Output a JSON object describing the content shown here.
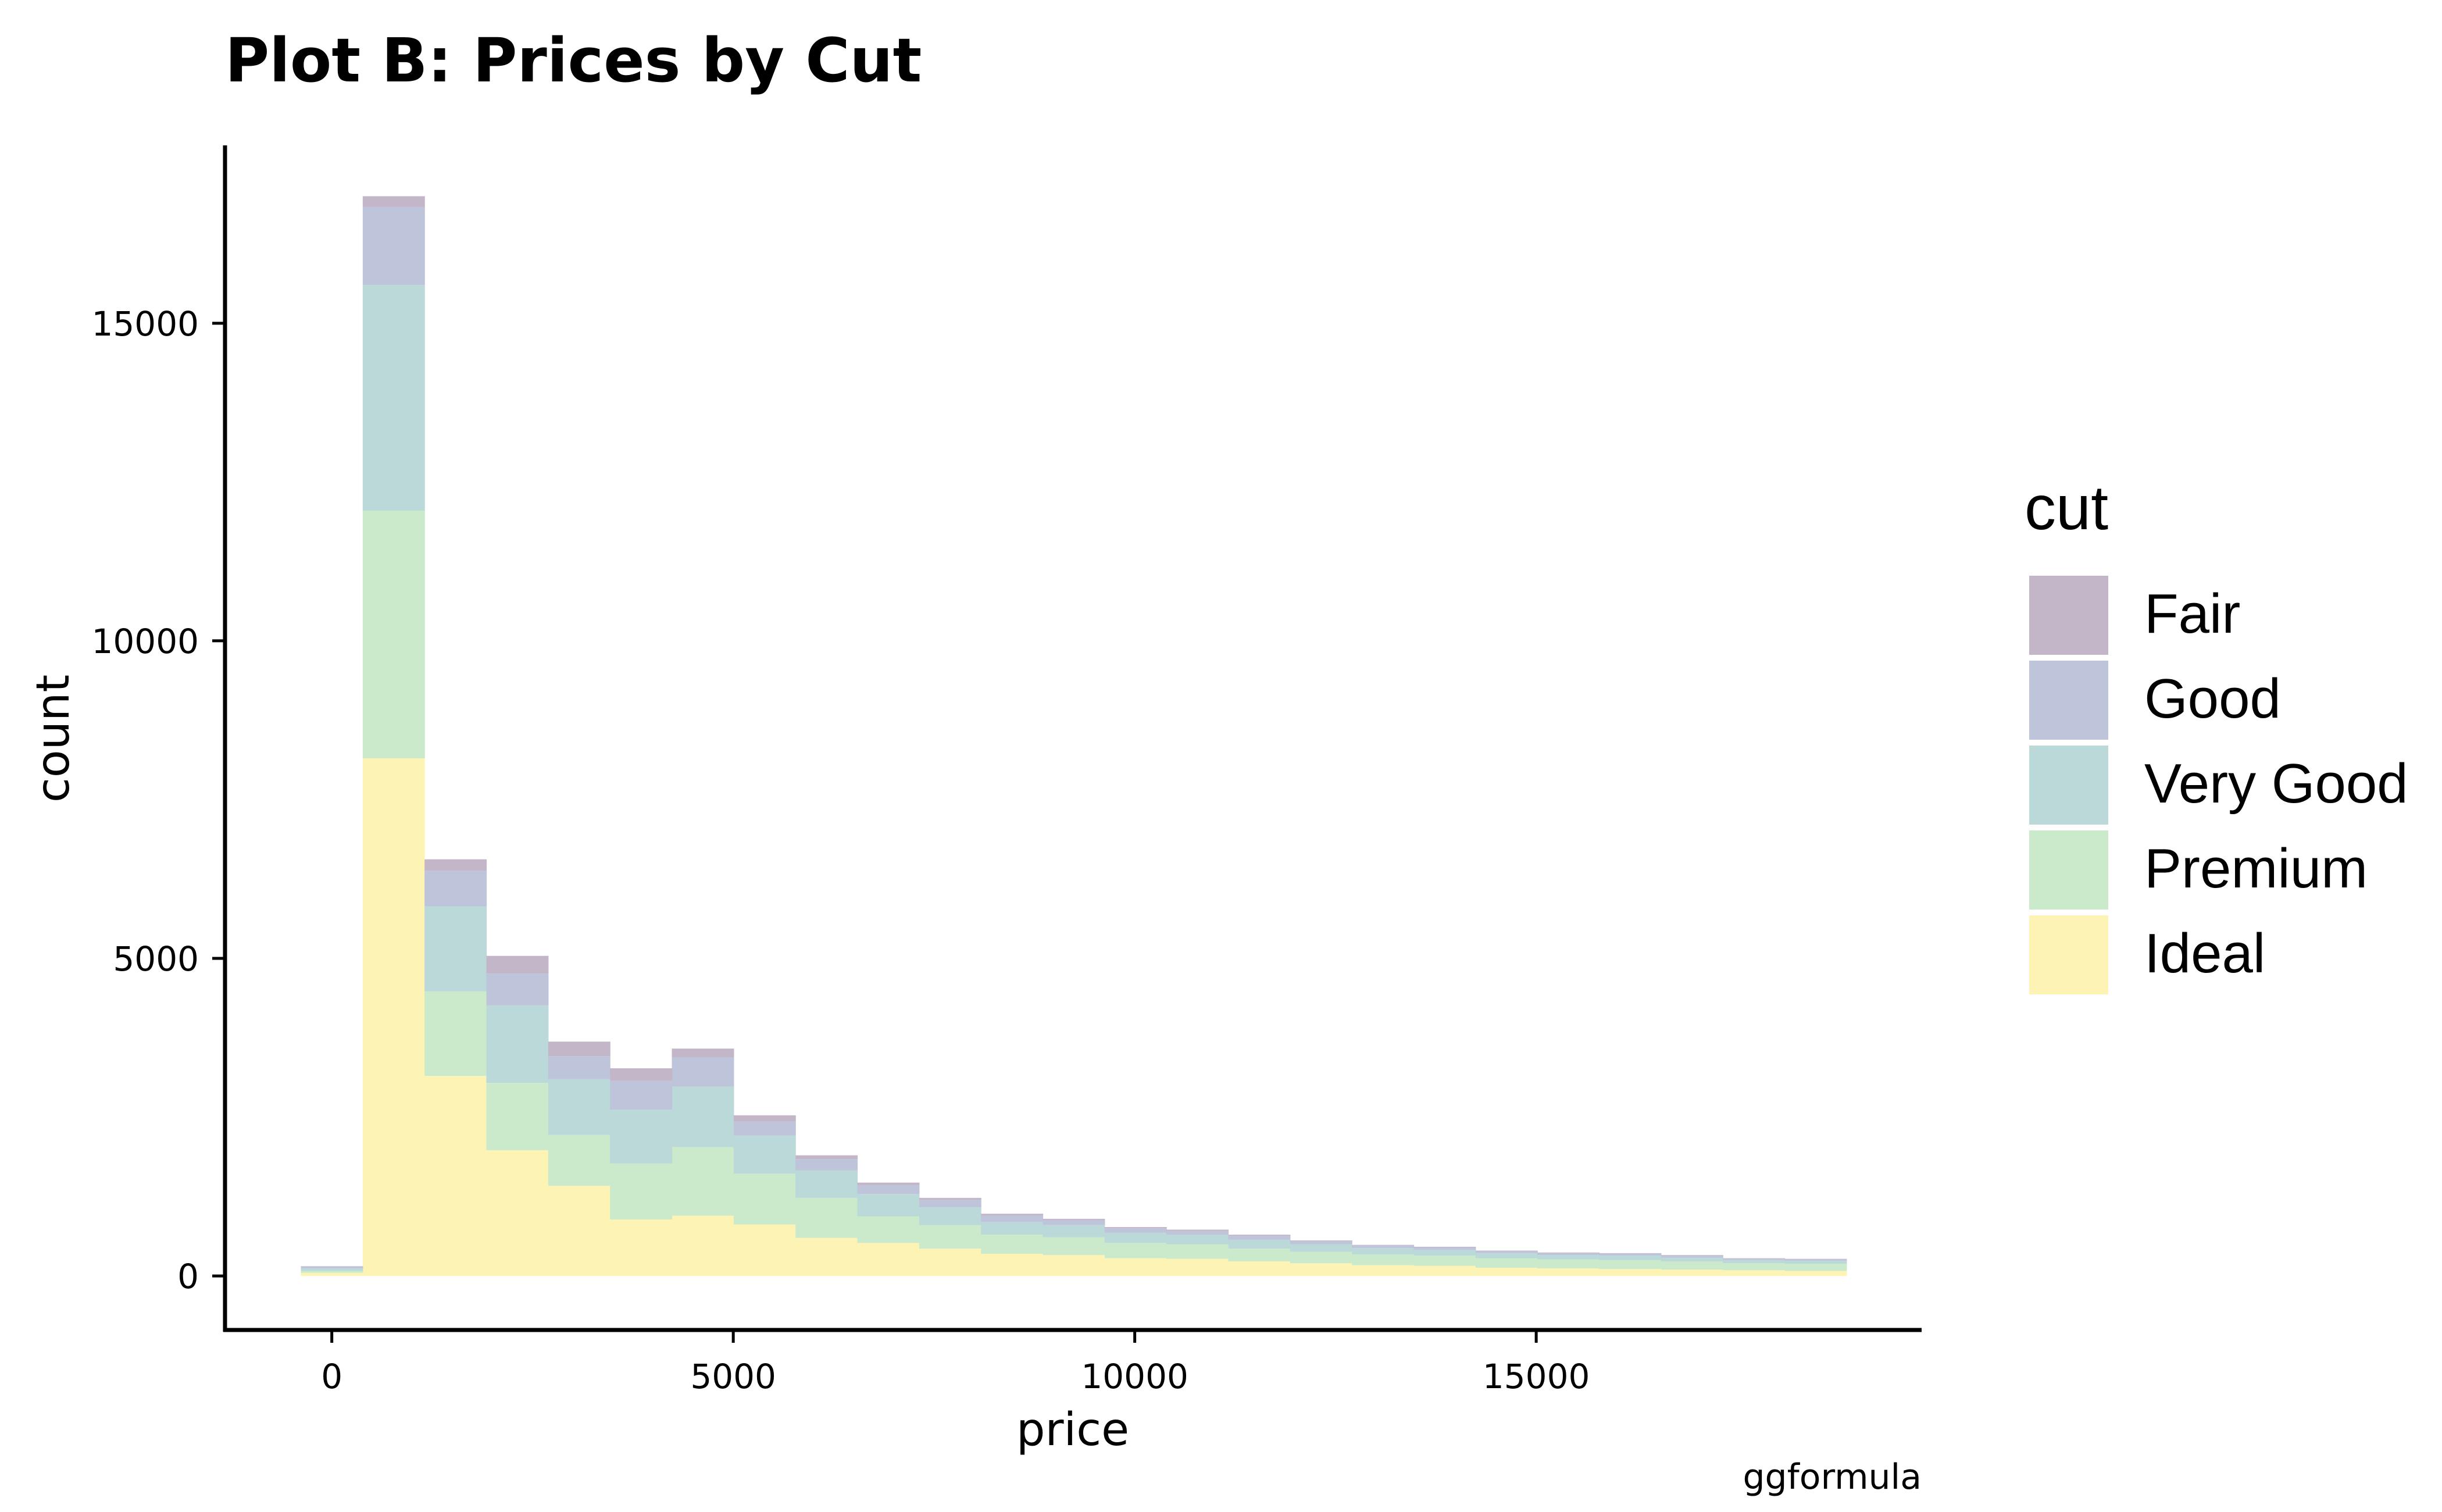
{
  "chart_data": {
    "type": "bar",
    "stacked": true,
    "title": "Plot B: Prices by Cut",
    "xlabel": "price",
    "ylabel": "count",
    "caption": "ggformula",
    "xlim": [
      -1330,
      19800
    ],
    "ylim": [
      -850,
      17800
    ],
    "x_ticks": [
      0,
      5000,
      10000,
      15000
    ],
    "x_tick_labels": [
      "0",
      "5000",
      "10000",
      "15000"
    ],
    "y_ticks": [
      0,
      5000,
      10000,
      15000
    ],
    "y_tick_labels": [
      "0",
      "5000",
      "10000",
      "15000"
    ],
    "bin_edges": [
      -385,
      385,
      1155,
      1925,
      2695,
      3465,
      4235,
      5005,
      5775,
      6545,
      7315,
      8085,
      8855,
      9625,
      10395,
      11165,
      11935,
      12705,
      13475,
      14245,
      15015,
      15785,
      16555,
      17325,
      18095,
      18865
    ],
    "legend": {
      "title": "cut",
      "position": "right"
    },
    "grid": false,
    "series": [
      {
        "name": "Ideal",
        "color": "#FDF3B4",
        "values": [
          50,
          8150,
          3150,
          1980,
          1420,
          890,
          950,
          810,
          600,
          520,
          430,
          350,
          330,
          280,
          270,
          230,
          200,
          170,
          160,
          130,
          120,
          110,
          100,
          90,
          80
        ]
      },
      {
        "name": "Premium",
        "color": "#CAEACB",
        "values": [
          30,
          3900,
          1330,
          1060,
          800,
          880,
          1080,
          800,
          630,
          420,
          370,
          300,
          280,
          240,
          230,
          200,
          180,
          170,
          160,
          150,
          140,
          140,
          130,
          110,
          110
        ]
      },
      {
        "name": "Very Good",
        "color": "#BBD9D9",
        "values": [
          40,
          3550,
          1340,
          1220,
          880,
          850,
          950,
          600,
          430,
          350,
          280,
          200,
          190,
          160,
          150,
          140,
          120,
          100,
          90,
          80,
          70,
          70,
          60,
          50,
          50
        ]
      },
      {
        "name": "Good",
        "color": "#BEC4D9",
        "values": [
          30,
          1230,
          560,
          500,
          360,
          450,
          460,
          220,
          180,
          140,
          120,
          100,
          80,
          70,
          60,
          60,
          50,
          40,
          40,
          30,
          30,
          30,
          30,
          20,
          20
        ]
      },
      {
        "name": "Fair",
        "color": "#C4B6C9",
        "values": [
          5,
          170,
          180,
          280,
          230,
          200,
          140,
          100,
          60,
          40,
          30,
          30,
          20,
          20,
          20,
          20,
          10,
          10,
          10,
          10,
          10,
          10,
          10,
          10,
          10
        ]
      }
    ]
  }
}
